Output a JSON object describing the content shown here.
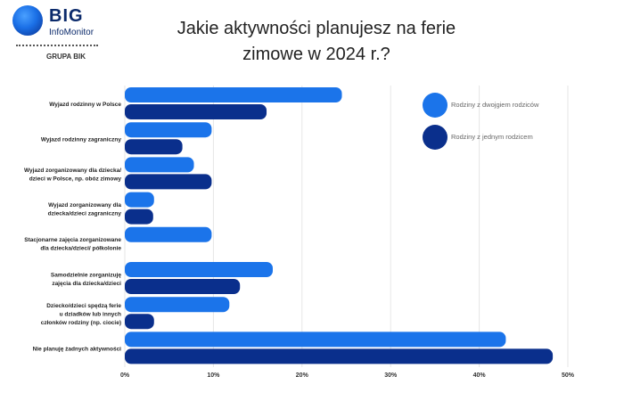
{
  "logo": {
    "big": "BIG",
    "sub": "InfoMonitor",
    "group": "GRUPA BIK"
  },
  "title_line1": "Jakie aktywności planujesz na ferie",
  "title_line2": "zimowe w 2024 r.?",
  "colors": {
    "two_parents": "#1b74ea",
    "one_parent": "#0a2f8c",
    "grid": "#e6e6e6"
  },
  "chart_data": {
    "type": "bar",
    "orientation": "horizontal",
    "title": "Jakie aktywności planujesz na ferie zimowe w 2024 r.?",
    "categories": [
      [
        "Wyjazd rodzinny w Polsce"
      ],
      [
        "Wyjazd rodzinny zagraniczny"
      ],
      [
        "Wyjazd zorganizowany dla dziecka/",
        "dzieci w Polsce, np. obóz zimowy"
      ],
      [
        "Wyjazd zorganizowany dla",
        "dziecka/dzieci zagraniczny"
      ],
      [
        "Stacjonarne zajęcia zorganizowane",
        "dla dziecka/dzieci/ półkolonie"
      ],
      [
        "Samodzielnie zorganizuję",
        "zajęcia dla dziecka/dzieci"
      ],
      [
        "Dziecko/dzieci spędzą ferie",
        "u dziadków lub innych",
        "członków rodziny (np. ciocie)"
      ],
      [
        "Nie planuję żadnych aktywności"
      ]
    ],
    "series": [
      {
        "name": "Rodziny z dwojgiem rodziców",
        "values": [
          24.5,
          9.8,
          7.8,
          3.3,
          9.8,
          16.7,
          11.8,
          43.0
        ]
      },
      {
        "name": "Rodziny z jednym rodzicem",
        "values": [
          16.0,
          6.5,
          9.8,
          3.2,
          null,
          13.0,
          3.3,
          48.3
        ]
      }
    ],
    "xlim": [
      0,
      50
    ],
    "xticks": [
      0,
      10,
      20,
      30,
      40,
      50
    ],
    "xtick_labels": [
      "0%",
      "10%",
      "20%",
      "30%",
      "40%",
      "50%"
    ],
    "grid": true,
    "legend_position": "top-right"
  }
}
